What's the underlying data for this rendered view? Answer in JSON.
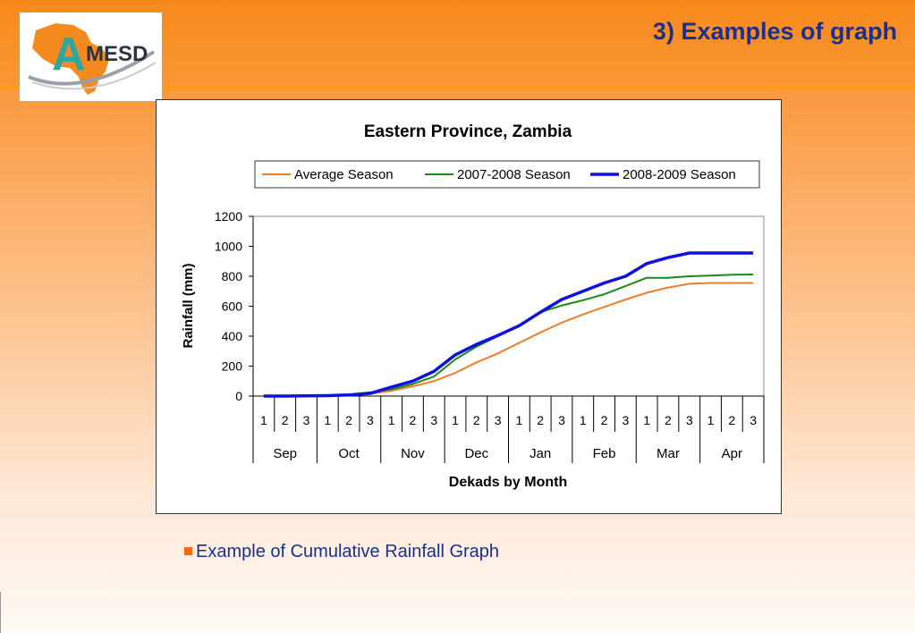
{
  "slide": {
    "title": "3) Examples of graph",
    "caption": "Example of Cumulative Rainfall Graph"
  },
  "logo": {
    "text_a": "A",
    "text_mesd": "MESD"
  },
  "colors": {
    "header_orange": "#f7891c",
    "title_blue": "#1b2f8e",
    "bullet_orange": "#f26a10",
    "average": "#f07c28",
    "season_2007": "#1a8a1a",
    "season_2008": "#1010e0"
  },
  "chart_data": {
    "type": "line",
    "title": "Eastern Province, Zambia",
    "xlabel": "Dekads by Month",
    "ylabel": "Rainfall (mm)",
    "ylim": [
      0,
      1200
    ],
    "yticks": [
      0,
      200,
      400,
      600,
      800,
      1000,
      1200
    ],
    "legend_position": "top",
    "dekads": [
      "1",
      "2",
      "3",
      "1",
      "2",
      "3",
      "1",
      "2",
      "3",
      "1",
      "2",
      "3",
      "1",
      "2",
      "3",
      "1",
      "2",
      "3",
      "1",
      "2",
      "3",
      "1",
      "2",
      "3"
    ],
    "months": [
      "Sep",
      "Oct",
      "Nov",
      "Dec",
      "Jan",
      "Feb",
      "Mar",
      "Apr"
    ],
    "series": [
      {
        "name": "Average Season",
        "color": "#f07c28",
        "values": [
          0,
          0,
          1,
          3,
          8,
          15,
          35,
          65,
          100,
          155,
          225,
          285,
          355,
          425,
          490,
          545,
          595,
          645,
          690,
          725,
          750,
          755,
          755,
          755
        ]
      },
      {
        "name": "2007-2008 Season",
        "color": "#1a8a1a",
        "values": [
          0,
          0,
          1,
          4,
          10,
          25,
          45,
          80,
          130,
          245,
          330,
          400,
          470,
          560,
          605,
          640,
          680,
          735,
          790,
          790,
          800,
          805,
          810,
          812
        ]
      },
      {
        "name": "2008-2009 Season",
        "color": "#1010e0",
        "values": [
          0,
          0,
          1,
          3,
          8,
          18,
          60,
          100,
          165,
          275,
          345,
          405,
          470,
          560,
          645,
          700,
          755,
          800,
          885,
          925,
          955,
          955,
          955,
          955
        ]
      }
    ]
  }
}
